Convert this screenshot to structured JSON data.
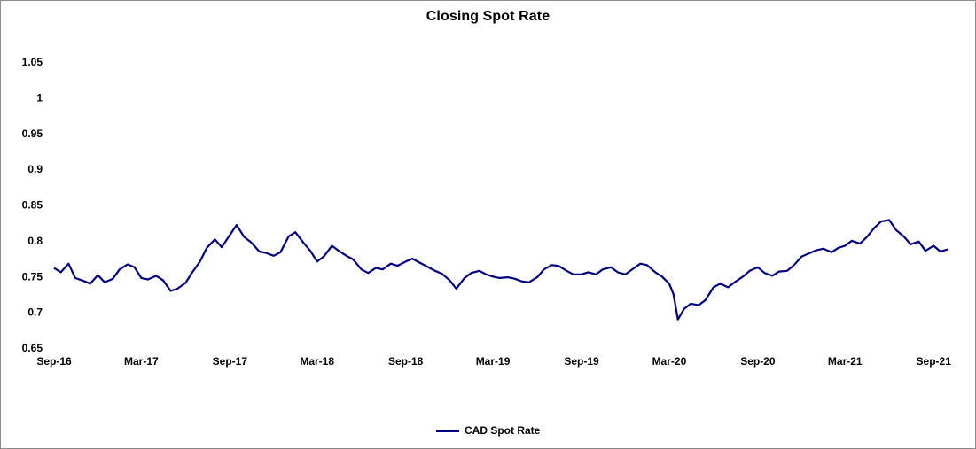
{
  "chart_data": {
    "type": "line",
    "title": "Closing Spot Rate",
    "xlabel": "",
    "ylabel": "",
    "ylim": [
      0.65,
      1.05
    ],
    "yticks": [
      0.65,
      0.7,
      0.75,
      0.8,
      0.85,
      0.9,
      0.95,
      1,
      1.05
    ],
    "ytick_labels": [
      "0.65",
      "0.7",
      "0.75",
      "0.8",
      "0.85",
      "0.9",
      "0.95",
      "1",
      "1.05"
    ],
    "xrange": [
      "2016-09-01",
      "2021-09-30"
    ],
    "xticks": [
      "2016-09-01",
      "2017-03-01",
      "2017-09-01",
      "2018-03-01",
      "2018-09-01",
      "2019-03-01",
      "2019-09-01",
      "2020-03-01",
      "2020-09-01",
      "2021-03-01",
      "2021-09-01"
    ],
    "xtick_labels": [
      "Sep-16",
      "Mar-17",
      "Sep-17",
      "Mar-18",
      "Sep-18",
      "Mar-19",
      "Sep-19",
      "Mar-20",
      "Sep-20",
      "Mar-21",
      "Sep-21"
    ],
    "grid": false,
    "legend_position": "bottom-center",
    "series": [
      {
        "name": "CAD Spot Rate",
        "color": "#000080",
        "points": [
          [
            "2016-09-01",
            0.762
          ],
          [
            "2016-09-15",
            0.756
          ],
          [
            "2016-10-01",
            0.768
          ],
          [
            "2016-10-15",
            0.748
          ],
          [
            "2016-11-01",
            0.744
          ],
          [
            "2016-11-15",
            0.74
          ],
          [
            "2016-12-01",
            0.752
          ],
          [
            "2016-12-15",
            0.742
          ],
          [
            "2017-01-01",
            0.747
          ],
          [
            "2017-01-15",
            0.76
          ],
          [
            "2017-02-01",
            0.767
          ],
          [
            "2017-02-15",
            0.763
          ],
          [
            "2017-03-01",
            0.748
          ],
          [
            "2017-03-15",
            0.746
          ],
          [
            "2017-04-01",
            0.751
          ],
          [
            "2017-04-15",
            0.745
          ],
          [
            "2017-05-01",
            0.73
          ],
          [
            "2017-05-15",
            0.733
          ],
          [
            "2017-06-01",
            0.741
          ],
          [
            "2017-06-15",
            0.756
          ],
          [
            "2017-07-01",
            0.771
          ],
          [
            "2017-07-15",
            0.79
          ],
          [
            "2017-08-01",
            0.802
          ],
          [
            "2017-08-15",
            0.791
          ],
          [
            "2017-09-01",
            0.808
          ],
          [
            "2017-09-15",
            0.822
          ],
          [
            "2017-10-01",
            0.805
          ],
          [
            "2017-10-15",
            0.798
          ],
          [
            "2017-11-01",
            0.785
          ],
          [
            "2017-11-15",
            0.783
          ],
          [
            "2017-12-01",
            0.779
          ],
          [
            "2017-12-15",
            0.784
          ],
          [
            "2018-01-01",
            0.806
          ],
          [
            "2018-01-15",
            0.812
          ],
          [
            "2018-02-01",
            0.797
          ],
          [
            "2018-02-15",
            0.786
          ],
          [
            "2018-03-01",
            0.771
          ],
          [
            "2018-03-15",
            0.778
          ],
          [
            "2018-04-01",
            0.793
          ],
          [
            "2018-04-15",
            0.786
          ],
          [
            "2018-05-01",
            0.779
          ],
          [
            "2018-05-15",
            0.774
          ],
          [
            "2018-06-01",
            0.76
          ],
          [
            "2018-06-15",
            0.755
          ],
          [
            "2018-07-01",
            0.762
          ],
          [
            "2018-07-15",
            0.76
          ],
          [
            "2018-08-01",
            0.768
          ],
          [
            "2018-08-15",
            0.765
          ],
          [
            "2018-09-01",
            0.771
          ],
          [
            "2018-09-15",
            0.775
          ],
          [
            "2018-10-01",
            0.769
          ],
          [
            "2018-10-15",
            0.764
          ],
          [
            "2018-11-01",
            0.758
          ],
          [
            "2018-11-15",
            0.754
          ],
          [
            "2018-12-01",
            0.745
          ],
          [
            "2018-12-15",
            0.733
          ],
          [
            "2019-01-01",
            0.748
          ],
          [
            "2019-01-15",
            0.755
          ],
          [
            "2019-02-01",
            0.758
          ],
          [
            "2019-02-15",
            0.753
          ],
          [
            "2019-03-01",
            0.75
          ],
          [
            "2019-03-15",
            0.748
          ],
          [
            "2019-04-01",
            0.749
          ],
          [
            "2019-04-15",
            0.747
          ],
          [
            "2019-05-01",
            0.743
          ],
          [
            "2019-05-15",
            0.742
          ],
          [
            "2019-06-01",
            0.749
          ],
          [
            "2019-06-15",
            0.76
          ],
          [
            "2019-07-01",
            0.766
          ],
          [
            "2019-07-15",
            0.765
          ],
          [
            "2019-08-01",
            0.758
          ],
          [
            "2019-08-15",
            0.753
          ],
          [
            "2019-09-01",
            0.753
          ],
          [
            "2019-09-15",
            0.756
          ],
          [
            "2019-10-01",
            0.753
          ],
          [
            "2019-10-15",
            0.76
          ],
          [
            "2019-11-01",
            0.763
          ],
          [
            "2019-11-15",
            0.756
          ],
          [
            "2019-12-01",
            0.753
          ],
          [
            "2019-12-15",
            0.76
          ],
          [
            "2020-01-01",
            0.768
          ],
          [
            "2020-01-15",
            0.766
          ],
          [
            "2020-02-01",
            0.756
          ],
          [
            "2020-02-15",
            0.75
          ],
          [
            "2020-03-01",
            0.74
          ],
          [
            "2020-03-10",
            0.725
          ],
          [
            "2020-03-19",
            0.69
          ],
          [
            "2020-04-01",
            0.705
          ],
          [
            "2020-04-15",
            0.712
          ],
          [
            "2020-05-01",
            0.71
          ],
          [
            "2020-05-15",
            0.717
          ],
          [
            "2020-06-01",
            0.735
          ],
          [
            "2020-06-15",
            0.74
          ],
          [
            "2020-07-01",
            0.735
          ],
          [
            "2020-07-15",
            0.742
          ],
          [
            "2020-08-01",
            0.75
          ],
          [
            "2020-08-15",
            0.758
          ],
          [
            "2020-09-01",
            0.763
          ],
          [
            "2020-09-15",
            0.755
          ],
          [
            "2020-10-01",
            0.751
          ],
          [
            "2020-10-15",
            0.757
          ],
          [
            "2020-11-01",
            0.758
          ],
          [
            "2020-11-15",
            0.766
          ],
          [
            "2020-12-01",
            0.778
          ],
          [
            "2020-12-15",
            0.782
          ],
          [
            "2021-01-01",
            0.787
          ],
          [
            "2021-01-15",
            0.789
          ],
          [
            "2021-02-01",
            0.784
          ],
          [
            "2021-02-15",
            0.79
          ],
          [
            "2021-03-01",
            0.793
          ],
          [
            "2021-03-15",
            0.8
          ],
          [
            "2021-04-01",
            0.796
          ],
          [
            "2021-04-15",
            0.805
          ],
          [
            "2021-05-01",
            0.818
          ],
          [
            "2021-05-15",
            0.827
          ],
          [
            "2021-06-01",
            0.829
          ],
          [
            "2021-06-15",
            0.815
          ],
          [
            "2021-07-01",
            0.806
          ],
          [
            "2021-07-15",
            0.795
          ],
          [
            "2021-08-01",
            0.799
          ],
          [
            "2021-08-15",
            0.786
          ],
          [
            "2021-09-01",
            0.793
          ],
          [
            "2021-09-15",
            0.785
          ],
          [
            "2021-09-30",
            0.788
          ]
        ]
      }
    ]
  }
}
